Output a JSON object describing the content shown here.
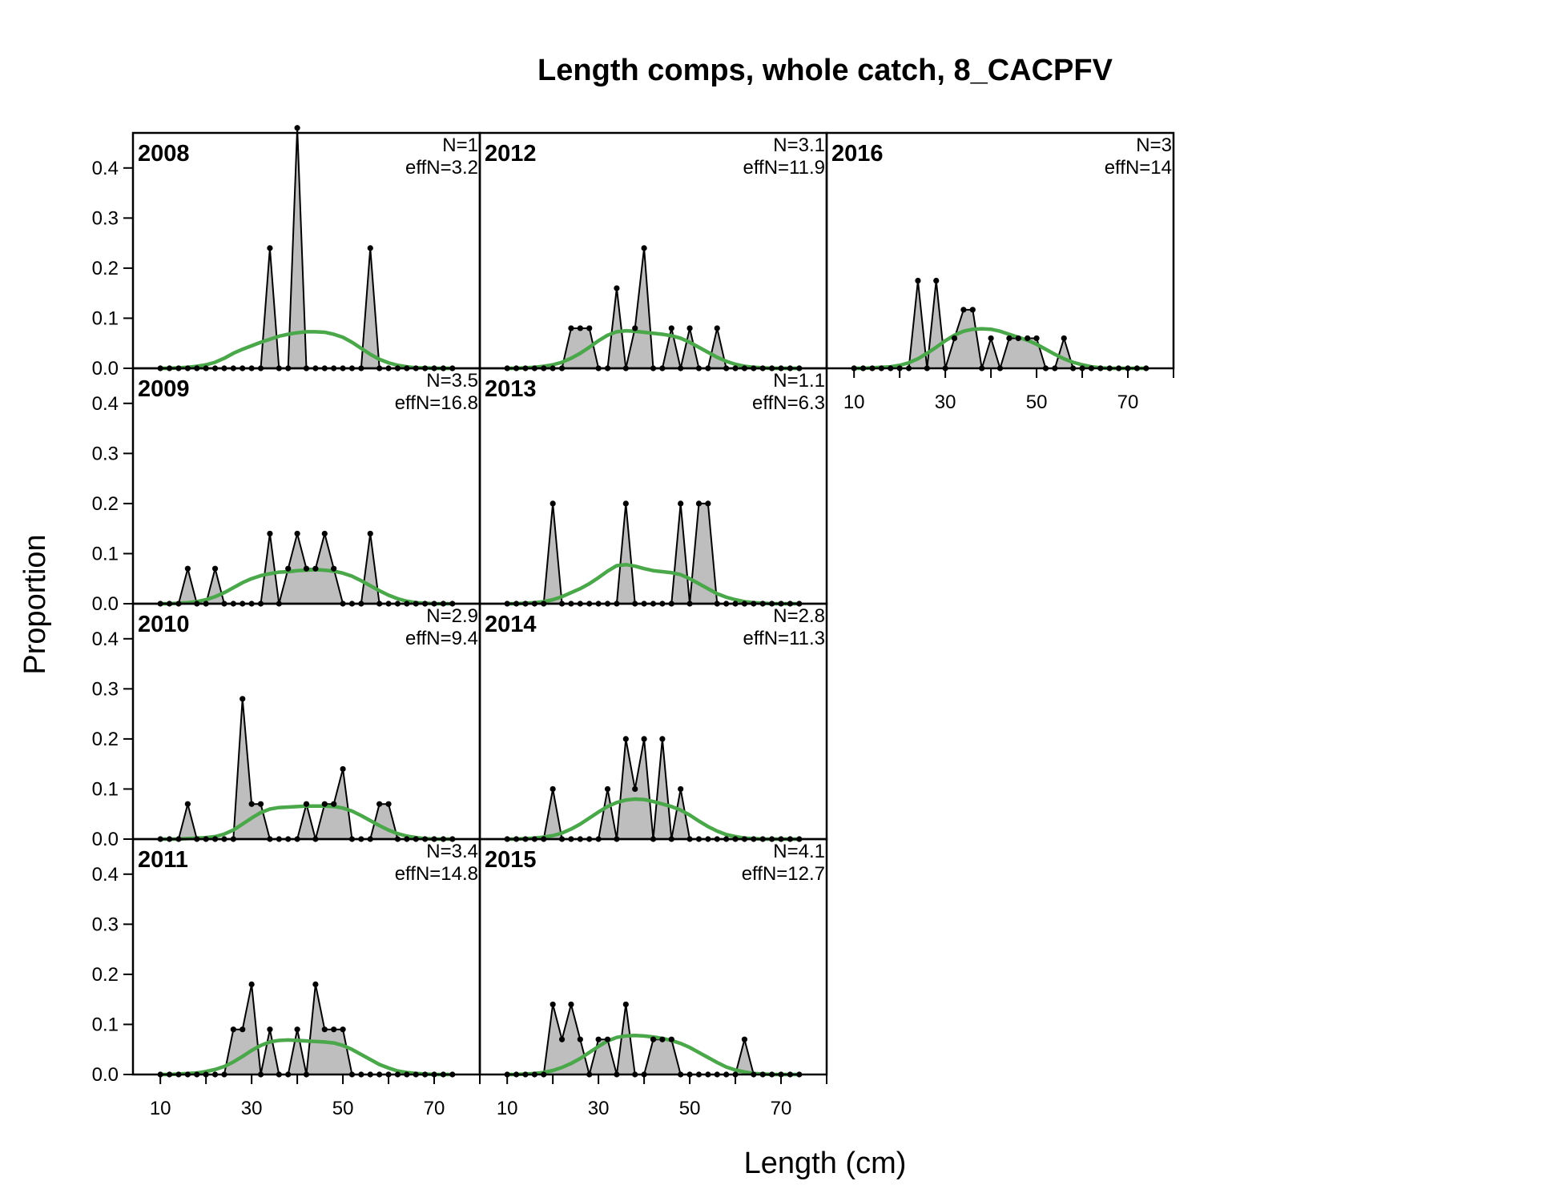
{
  "colors": {
    "observed_fill": "#bebebe",
    "observed_line": "#000000",
    "expected_line": "#4aa84a",
    "zero_line": "#bebebe",
    "frame": "#000000",
    "background": "#ffffff"
  },
  "chart_data": {
    "type": "area",
    "title": "Length comps, whole catch, 8_CACPFV",
    "xlabel": "Length (cm)",
    "ylabel": "Proportion",
    "xlim": [
      4,
      80
    ],
    "ylim": [
      0,
      0.47
    ],
    "x_ticks": [
      10,
      30,
      50,
      70
    ],
    "y_ticks": [
      "0.0",
      "0.1",
      "0.2",
      "0.3",
      "0.4"
    ],
    "legend": "none",
    "length_bins": [
      10,
      12,
      14,
      16,
      18,
      20,
      22,
      24,
      26,
      28,
      30,
      32,
      34,
      36,
      38,
      40,
      42,
      44,
      46,
      48,
      50,
      52,
      54,
      56,
      58,
      60,
      62,
      64,
      66,
      68,
      70,
      72,
      74
    ],
    "panels": [
      {
        "year": "2008",
        "n_label": "N=1",
        "effn_label": "effN=3.2",
        "observed": [
          0,
          0,
          0,
          0,
          0,
          0,
          0,
          0,
          0,
          0,
          0,
          0,
          0.24,
          0,
          0,
          0.48,
          0,
          0,
          0,
          0,
          0,
          0,
          0,
          0.24,
          0,
          0,
          0,
          0,
          0,
          0,
          0,
          0,
          0
        ],
        "expected": [
          0,
          0,
          0.001,
          0.002,
          0.004,
          0.007,
          0.012,
          0.02,
          0.03,
          0.038,
          0.045,
          0.052,
          0.058,
          0.064,
          0.068,
          0.071,
          0.073,
          0.073,
          0.072,
          0.068,
          0.062,
          0.052,
          0.04,
          0.028,
          0.018,
          0.011,
          0.006,
          0.003,
          0.001,
          0.001,
          0,
          0,
          0
        ]
      },
      {
        "year": "2009",
        "n_label": "N=3.5",
        "effn_label": "effN=16.8",
        "observed": [
          0,
          0,
          0,
          0.07,
          0,
          0,
          0.07,
          0,
          0,
          0,
          0,
          0,
          0.14,
          0,
          0.07,
          0.14,
          0.07,
          0.07,
          0.14,
          0.07,
          0,
          0,
          0,
          0.14,
          0,
          0,
          0,
          0,
          0,
          0,
          0,
          0,
          0
        ],
        "expected": [
          0,
          0,
          0.001,
          0.002,
          0.004,
          0.008,
          0.014,
          0.022,
          0.032,
          0.042,
          0.05,
          0.056,
          0.06,
          0.063,
          0.064,
          0.066,
          0.067,
          0.068,
          0.067,
          0.065,
          0.061,
          0.055,
          0.046,
          0.036,
          0.026,
          0.017,
          0.01,
          0.005,
          0.002,
          0.001,
          0,
          0,
          0
        ]
      },
      {
        "year": "2010",
        "n_label": "N=2.9",
        "effn_label": "effN=9.4",
        "observed": [
          0,
          0,
          0,
          0.07,
          0,
          0,
          0,
          0,
          0,
          0.28,
          0.07,
          0.07,
          0,
          0,
          0,
          0,
          0.07,
          0,
          0.07,
          0.07,
          0.14,
          0,
          0,
          0,
          0.07,
          0.07,
          0,
          0,
          0,
          0,
          0,
          0,
          0
        ],
        "expected": [
          0,
          0,
          0,
          0.001,
          0.002,
          0.003,
          0.005,
          0.01,
          0.018,
          0.03,
          0.042,
          0.053,
          0.06,
          0.063,
          0.064,
          0.065,
          0.066,
          0.066,
          0.066,
          0.065,
          0.062,
          0.056,
          0.047,
          0.037,
          0.027,
          0.018,
          0.011,
          0.006,
          0.003,
          0.001,
          0,
          0,
          0
        ]
      },
      {
        "year": "2011",
        "n_label": "N=3.4",
        "effn_label": "effN=14.8",
        "observed": [
          0,
          0,
          0,
          0,
          0,
          0,
          0,
          0,
          0.09,
          0.09,
          0.18,
          0,
          0.09,
          0,
          0,
          0.09,
          0,
          0.18,
          0.09,
          0.09,
          0.09,
          0,
          0,
          0,
          0,
          0,
          0,
          0,
          0,
          0,
          0,
          0,
          0
        ],
        "expected": [
          0,
          0,
          0.001,
          0.002,
          0.003,
          0.006,
          0.01,
          0.016,
          0.025,
          0.036,
          0.048,
          0.058,
          0.065,
          0.068,
          0.069,
          0.068,
          0.067,
          0.066,
          0.065,
          0.063,
          0.058,
          0.05,
          0.04,
          0.03,
          0.02,
          0.013,
          0.007,
          0.004,
          0.002,
          0.001,
          0,
          0,
          0
        ]
      },
      {
        "year": "2012",
        "n_label": "N=3.1",
        "effn_label": "effN=11.9",
        "observed": [
          0,
          0,
          0,
          0,
          0,
          0,
          0,
          0.08,
          0.08,
          0.08,
          0,
          0,
          0.16,
          0,
          0.08,
          0.24,
          0,
          0,
          0.08,
          0,
          0.08,
          0,
          0,
          0.08,
          0,
          0,
          0,
          0,
          0,
          0,
          0,
          0,
          0
        ],
        "expected": [
          0,
          0,
          0.001,
          0.002,
          0.004,
          0.007,
          0.012,
          0.02,
          0.03,
          0.042,
          0.055,
          0.066,
          0.073,
          0.075,
          0.074,
          0.072,
          0.07,
          0.068,
          0.065,
          0.06,
          0.052,
          0.042,
          0.032,
          0.022,
          0.014,
          0.008,
          0.004,
          0.002,
          0.001,
          0,
          0,
          0,
          0
        ]
      },
      {
        "year": "2013",
        "n_label": "N=1.1",
        "effn_label": "effN=6.3",
        "observed": [
          0,
          0,
          0,
          0,
          0,
          0.2,
          0,
          0,
          0,
          0,
          0,
          0,
          0,
          0.2,
          0,
          0,
          0,
          0,
          0,
          0.2,
          0,
          0.2,
          0.2,
          0,
          0,
          0,
          0,
          0,
          0,
          0,
          0,
          0,
          0
        ],
        "expected": [
          0,
          0,
          0.001,
          0.002,
          0.004,
          0.008,
          0.014,
          0.022,
          0.03,
          0.04,
          0.052,
          0.065,
          0.076,
          0.078,
          0.075,
          0.07,
          0.066,
          0.064,
          0.062,
          0.058,
          0.05,
          0.04,
          0.03,
          0.02,
          0.013,
          0.008,
          0.004,
          0.002,
          0.001,
          0,
          0,
          0,
          0
        ]
      },
      {
        "year": "2014",
        "n_label": "N=2.8",
        "effn_label": "effN=11.3",
        "observed": [
          0,
          0,
          0,
          0,
          0,
          0.1,
          0,
          0,
          0,
          0,
          0,
          0.1,
          0,
          0.2,
          0.1,
          0.2,
          0,
          0.2,
          0,
          0.1,
          0,
          0,
          0,
          0,
          0,
          0,
          0,
          0,
          0,
          0,
          0,
          0,
          0
        ],
        "expected": [
          0,
          0,
          0.001,
          0.002,
          0.004,
          0.007,
          0.012,
          0.02,
          0.03,
          0.042,
          0.054,
          0.065,
          0.073,
          0.078,
          0.08,
          0.079,
          0.075,
          0.07,
          0.065,
          0.058,
          0.048,
          0.036,
          0.025,
          0.016,
          0.009,
          0.005,
          0.002,
          0.001,
          0,
          0,
          0,
          0,
          0
        ]
      },
      {
        "year": "2015",
        "n_label": "N=4.1",
        "effn_label": "effN=12.7",
        "observed": [
          0,
          0,
          0,
          0,
          0,
          0.14,
          0.07,
          0.14,
          0.07,
          0,
          0.07,
          0.07,
          0,
          0.14,
          0,
          0,
          0.07,
          0.07,
          0.07,
          0,
          0,
          0,
          0,
          0,
          0,
          0,
          0.07,
          0,
          0,
          0,
          0,
          0,
          0
        ],
        "expected": [
          0,
          0,
          0.001,
          0.002,
          0.004,
          0.008,
          0.014,
          0.022,
          0.032,
          0.044,
          0.056,
          0.067,
          0.074,
          0.077,
          0.078,
          0.077,
          0.075,
          0.072,
          0.068,
          0.062,
          0.054,
          0.044,
          0.034,
          0.024,
          0.015,
          0.009,
          0.005,
          0.002,
          0.001,
          0,
          0,
          0,
          0
        ]
      },
      {
        "year": "2016",
        "n_label": "N=3",
        "effn_label": "effN=14",
        "observed": [
          0,
          0,
          0,
          0,
          0,
          0,
          0,
          0.175,
          0,
          0.175,
          0,
          0.06,
          0.117,
          0.117,
          0,
          0.06,
          0,
          0.06,
          0.06,
          0.06,
          0.06,
          0,
          0,
          0.06,
          0,
          0,
          0,
          0,
          0,
          0,
          0,
          0,
          0
        ],
        "expected": [
          0,
          0,
          0.001,
          0.002,
          0.003,
          0.006,
          0.011,
          0.019,
          0.03,
          0.042,
          0.055,
          0.066,
          0.074,
          0.078,
          0.079,
          0.078,
          0.074,
          0.068,
          0.062,
          0.056,
          0.048,
          0.038,
          0.028,
          0.019,
          0.012,
          0.007,
          0.003,
          0.001,
          0,
          0,
          0,
          0,
          0
        ]
      }
    ]
  }
}
